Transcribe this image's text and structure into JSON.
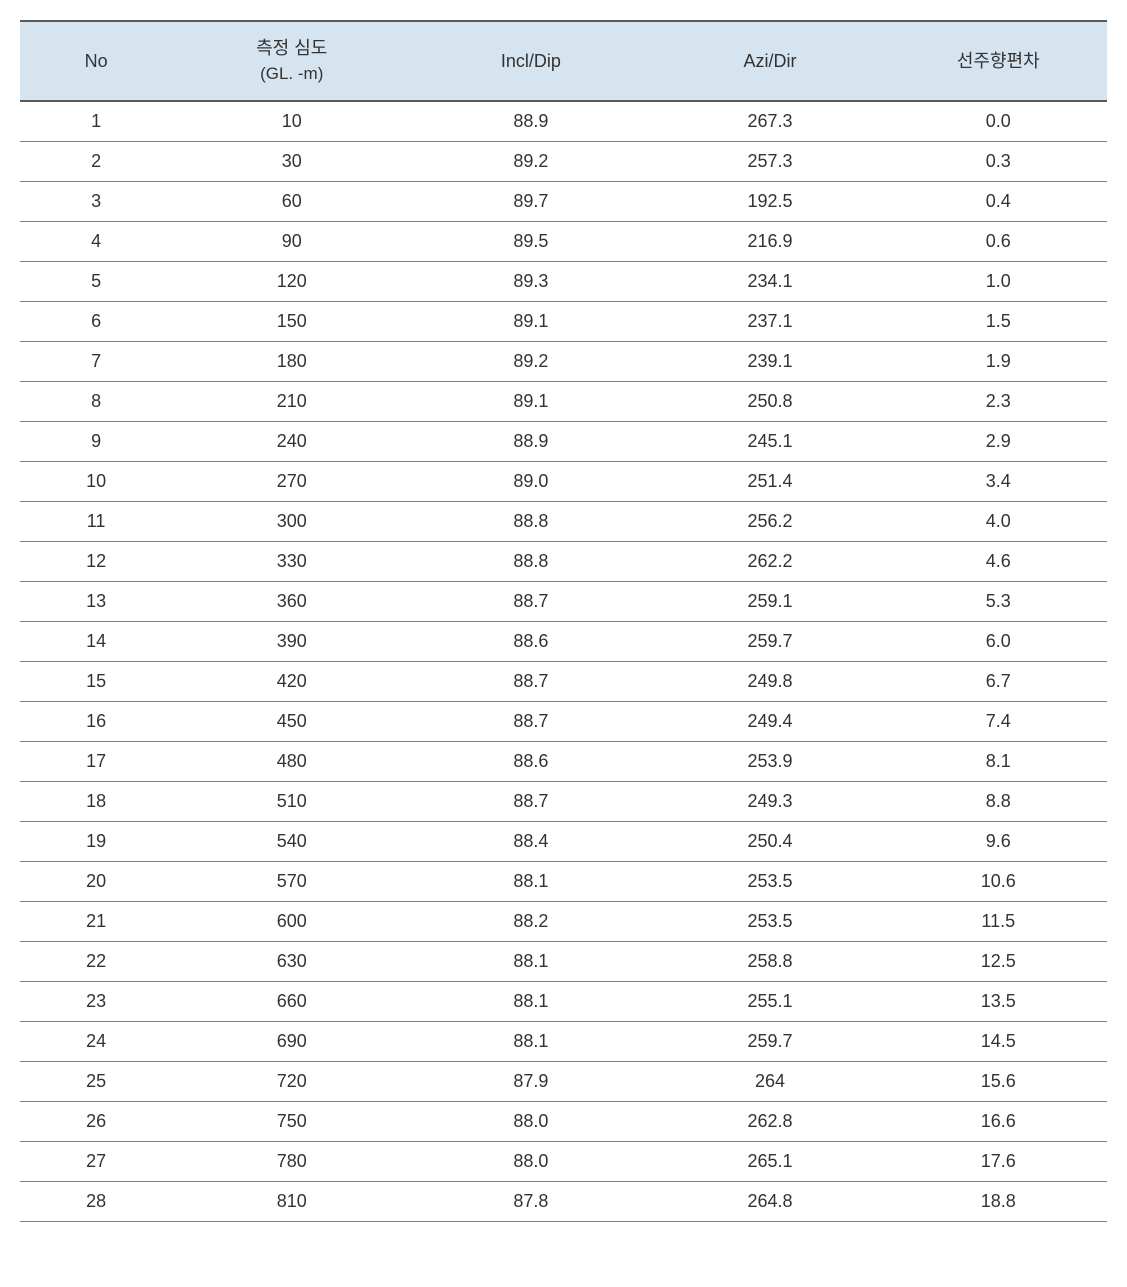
{
  "table": {
    "columns": [
      {
        "key": "no",
        "label_line1": "No",
        "label_line2": "",
        "width": "14%"
      },
      {
        "key": "depth",
        "label_line1": "측정 심도",
        "label_line2": "(GL. -m)",
        "width": "22%"
      },
      {
        "key": "incl",
        "label_line1": "Incl/Dip",
        "label_line2": "",
        "width": "22%"
      },
      {
        "key": "azi",
        "label_line1": "Azi/Dir",
        "label_line2": "",
        "width": "22%"
      },
      {
        "key": "dev",
        "label_line1": "선주향편차",
        "label_line2": "",
        "width": "20%"
      }
    ],
    "rows": [
      {
        "no": "1",
        "depth": "10",
        "incl": "88.9",
        "azi": "267.3",
        "dev": "0.0"
      },
      {
        "no": "2",
        "depth": "30",
        "incl": "89.2",
        "azi": "257.3",
        "dev": "0.3"
      },
      {
        "no": "3",
        "depth": "60",
        "incl": "89.7",
        "azi": "192.5",
        "dev": "0.4"
      },
      {
        "no": "4",
        "depth": "90",
        "incl": "89.5",
        "azi": "216.9",
        "dev": "0.6"
      },
      {
        "no": "5",
        "depth": "120",
        "incl": "89.3",
        "azi": "234.1",
        "dev": "1.0"
      },
      {
        "no": "6",
        "depth": "150",
        "incl": "89.1",
        "azi": "237.1",
        "dev": "1.5"
      },
      {
        "no": "7",
        "depth": "180",
        "incl": "89.2",
        "azi": "239.1",
        "dev": "1.9"
      },
      {
        "no": "8",
        "depth": "210",
        "incl": "89.1",
        "azi": "250.8",
        "dev": "2.3"
      },
      {
        "no": "9",
        "depth": "240",
        "incl": "88.9",
        "azi": "245.1",
        "dev": "2.9"
      },
      {
        "no": "10",
        "depth": "270",
        "incl": "89.0",
        "azi": "251.4",
        "dev": "3.4"
      },
      {
        "no": "11",
        "depth": "300",
        "incl": "88.8",
        "azi": "256.2",
        "dev": "4.0"
      },
      {
        "no": "12",
        "depth": "330",
        "incl": "88.8",
        "azi": "262.2",
        "dev": "4.6"
      },
      {
        "no": "13",
        "depth": "360",
        "incl": "88.7",
        "azi": "259.1",
        "dev": "5.3"
      },
      {
        "no": "14",
        "depth": "390",
        "incl": "88.6",
        "azi": "259.7",
        "dev": "6.0"
      },
      {
        "no": "15",
        "depth": "420",
        "incl": "88.7",
        "azi": "249.8",
        "dev": "6.7"
      },
      {
        "no": "16",
        "depth": "450",
        "incl": "88.7",
        "azi": "249.4",
        "dev": "7.4"
      },
      {
        "no": "17",
        "depth": "480",
        "incl": "88.6",
        "azi": "253.9",
        "dev": "8.1"
      },
      {
        "no": "18",
        "depth": "510",
        "incl": "88.7",
        "azi": "249.3",
        "dev": "8.8"
      },
      {
        "no": "19",
        "depth": "540",
        "incl": "88.4",
        "azi": "250.4",
        "dev": "9.6"
      },
      {
        "no": "20",
        "depth": "570",
        "incl": "88.1",
        "azi": "253.5",
        "dev": "10.6"
      },
      {
        "no": "21",
        "depth": "600",
        "incl": "88.2",
        "azi": "253.5",
        "dev": "11.5"
      },
      {
        "no": "22",
        "depth": "630",
        "incl": "88.1",
        "azi": "258.8",
        "dev": "12.5"
      },
      {
        "no": "23",
        "depth": "660",
        "incl": "88.1",
        "azi": "255.1",
        "dev": "13.5"
      },
      {
        "no": "24",
        "depth": "690",
        "incl": "88.1",
        "azi": "259.7",
        "dev": "14.5"
      },
      {
        "no": "25",
        "depth": "720",
        "incl": "87.9",
        "azi": "264",
        "dev": "15.6"
      },
      {
        "no": "26",
        "depth": "750",
        "incl": "88.0",
        "azi": "262.8",
        "dev": "16.6"
      },
      {
        "no": "27",
        "depth": "780",
        "incl": "88.0",
        "azi": "265.1",
        "dev": "17.6"
      },
      {
        "no": "28",
        "depth": "810",
        "incl": "87.8",
        "azi": "264.8",
        "dev": "18.8"
      }
    ],
    "styling": {
      "header_background": "#d6e4ef",
      "body_background": "#ffffff",
      "border_top_color": "#5a5a5a",
      "border_top_width": 2,
      "row_border_color": "#808080",
      "row_border_width": 1,
      "text_color": "#333333",
      "font_size": 18,
      "header_font_size": 18,
      "cell_padding_vertical": 9,
      "cell_padding_horizontal": 8,
      "text_align": "center"
    }
  }
}
